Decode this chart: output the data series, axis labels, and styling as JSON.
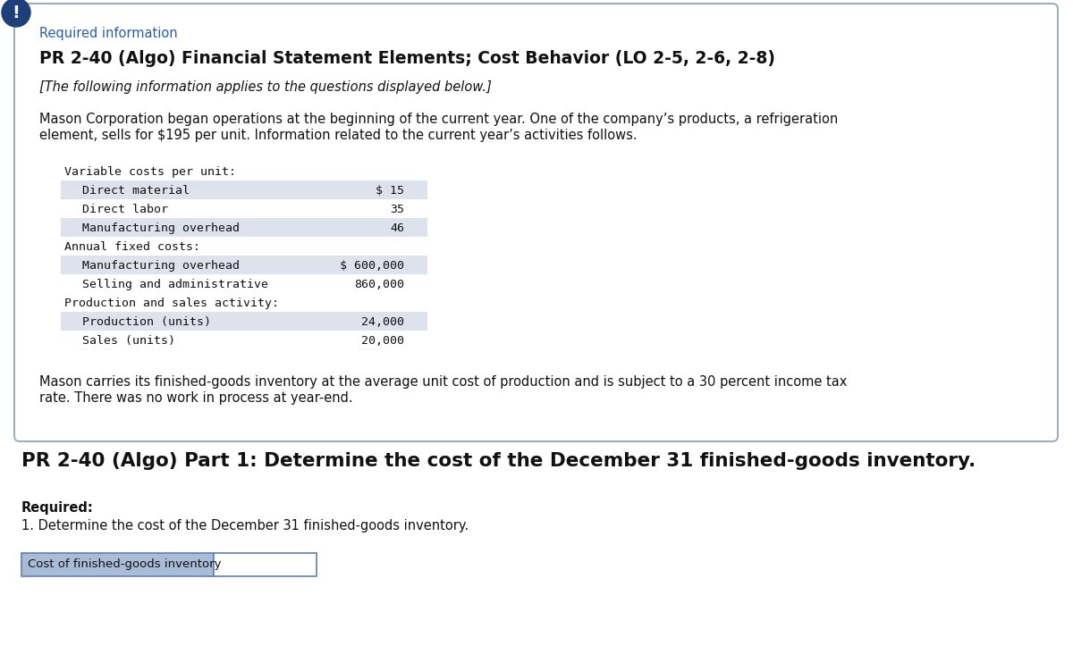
{
  "bg_color": "#ffffff",
  "box_bg": "#ffffff",
  "box_border": "#9aaabb",
  "required_info_color": "#2a5fa5",
  "title_bold": "PR 2-40 (Algo) Financial Statement Elements; Cost Behavior (LO 2-5, 2-6, 2-8)",
  "subtitle_italic": "[The following information applies to the questions displayed below.]",
  "intro_line1": "Mason Corporation began operations at the beginning of the current year. One of the company’s products, a refrigeration",
  "intro_line2": "element, sells for $195 per unit. Information related to the current year’s activities follows.",
  "table_rows": [
    {
      "label": "Variable costs per unit:",
      "value": "",
      "indent": 0,
      "bg": "white"
    },
    {
      "label": "Direct material",
      "value": "$ 15",
      "indent": 1,
      "bg": "stripe"
    },
    {
      "label": "Direct labor",
      "value": "35",
      "indent": 1,
      "bg": "white"
    },
    {
      "label": "Manufacturing overhead",
      "value": "46",
      "indent": 1,
      "bg": "stripe"
    },
    {
      "label": "Annual fixed costs:",
      "value": "",
      "indent": 0,
      "bg": "white"
    },
    {
      "label": "Manufacturing overhead",
      "value": "$ 600,000",
      "indent": 1,
      "bg": "stripe"
    },
    {
      "label": "Selling and administrative",
      "value": "860,000",
      "indent": 1,
      "bg": "white"
    },
    {
      "label": "Production and sales activity:",
      "value": "",
      "indent": 0,
      "bg": "white"
    },
    {
      "label": "Production (units)",
      "value": "24,000",
      "indent": 1,
      "bg": "stripe"
    },
    {
      "label": "Sales (units)",
      "value": "20,000",
      "indent": 1,
      "bg": "white"
    }
  ],
  "footer_line1": "Mason carries its finished-goods inventory at the average unit cost of production and is subject to a 30 percent income tax",
  "footer_line2": "rate. There was no work in process at year-end.",
  "part_title": "PR 2-40 (Algo) Part 1: Determine the cost of the December 31 finished-goods inventory.",
  "required_label": "Required:",
  "required_item": "1. Determine the cost of the December 31 finished-goods inventory.",
  "input_label": "Cost of finished-goods inventory",
  "input_label_bg": "#a8bcd8",
  "input_box_bg": "#ffffff",
  "input_box_border": "#6080aa",
  "icon_bg": "#1e3f7a",
  "icon_color": "#ffffff",
  "stripe_color": "#dde2ed",
  "mono_font_size": 9.5,
  "body_font_size": 10.5,
  "title_font_size": 13.5,
  "part_title_font_size": 15.5,
  "req_info_font_size": 10.5
}
